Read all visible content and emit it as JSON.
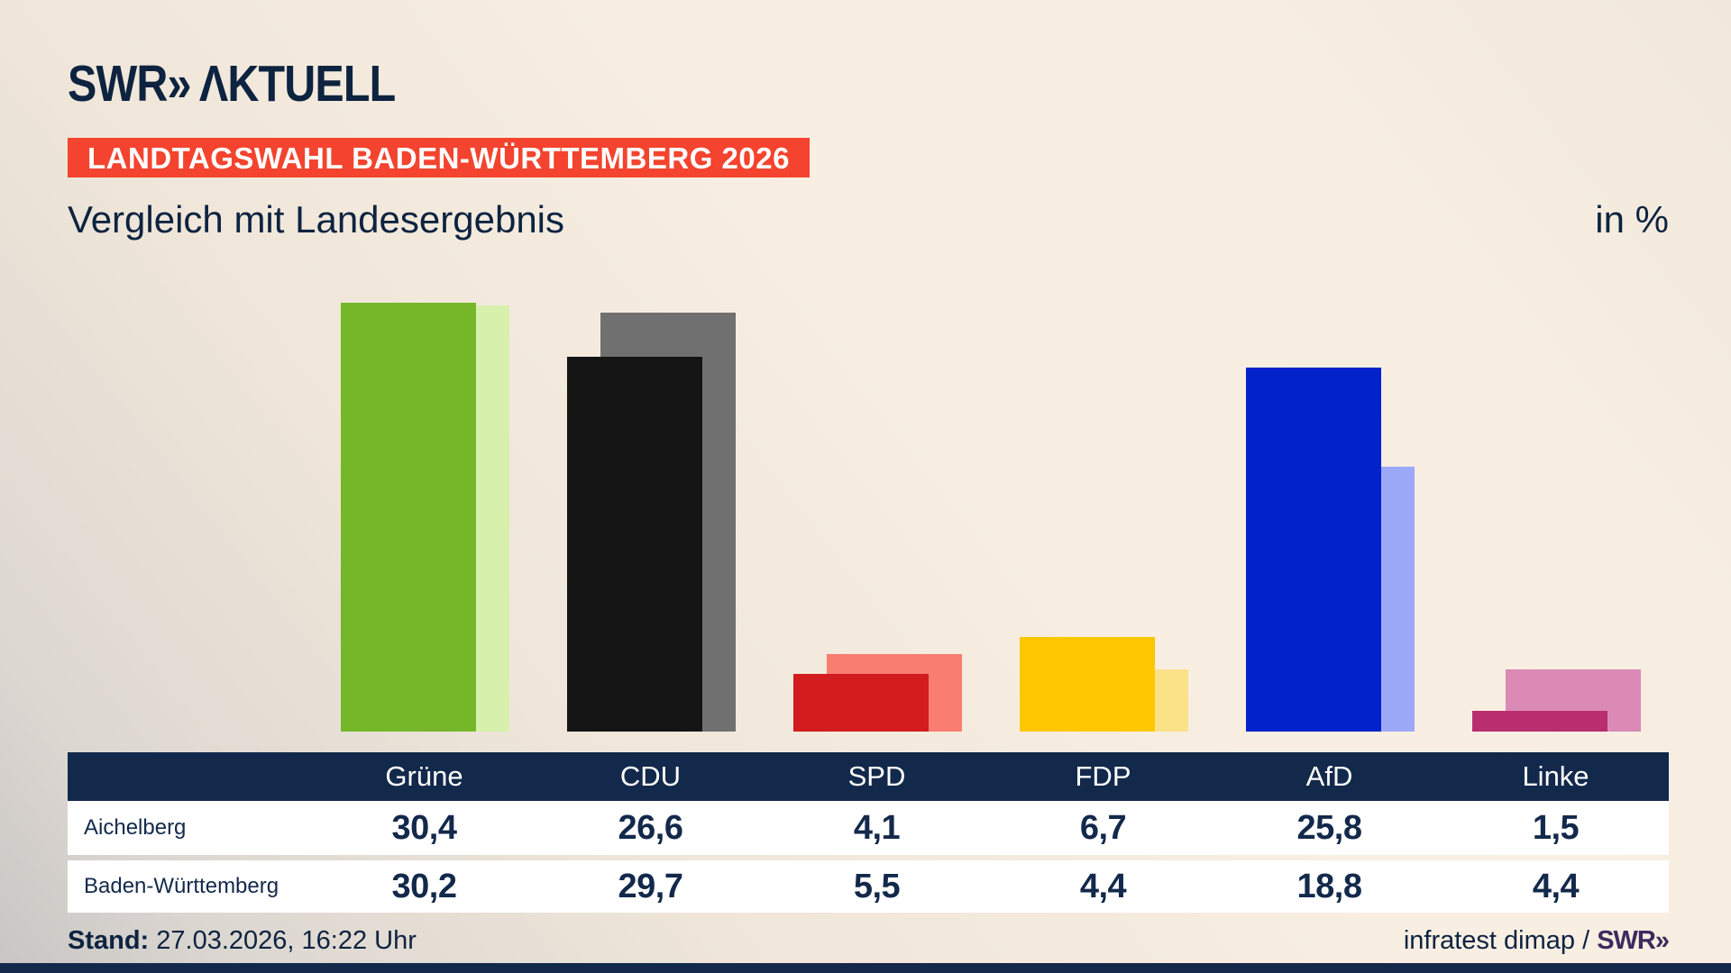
{
  "brand": {
    "logo_swr": "SWR",
    "logo_chevron": "»",
    "logo_suffix": "ΛKTUELL"
  },
  "badge": {
    "label": "LANDTAGSWAHL BADEN-WÜRTTEMBERG 2026",
    "bg": "#f4432e",
    "fg": "#ffffff"
  },
  "title": "Vergleich mit Landesergebnis",
  "unit": "in %",
  "chart_data": {
    "type": "bar",
    "categories": [
      "Grüne",
      "CDU",
      "SPD",
      "FDP",
      "AfD",
      "Linke"
    ],
    "series": [
      {
        "name": "Aichelberg",
        "values": [
          30.4,
          26.6,
          4.1,
          6.7,
          25.8,
          1.5
        ],
        "colors": [
          "#76b72a",
          "#141414",
          "#d21c1e",
          "#fdc700",
          "#0222cc",
          "#b82e6e"
        ]
      },
      {
        "name": "Baden-Württemberg",
        "values": [
          30.2,
          29.7,
          5.5,
          4.4,
          18.8,
          4.4
        ],
        "colors": [
          "#d7f0ac",
          "#717070",
          "#f97d70",
          "#fbe289",
          "#9ca9f9",
          "#da8ab5"
        ]
      }
    ],
    "ylim": [
      0,
      32
    ],
    "grid": false,
    "legend_position": "table-below",
    "value_format": "decimal-comma",
    "title": "Vergleich mit Landesergebnis",
    "ylabel": "in %"
  },
  "table": {
    "rows": [
      {
        "label": "Aichelberg",
        "values": [
          "30,4",
          "26,6",
          "4,1",
          "6,7",
          "25,8",
          "1,5"
        ]
      },
      {
        "label": "Baden-Württemberg",
        "values": [
          "30,2",
          "29,7",
          "5,5",
          "4,4",
          "18,8",
          "4,4"
        ]
      }
    ]
  },
  "footer": {
    "stand_label": "Stand:",
    "stand_text": " 27.03.2026, 16:22 Uhr",
    "source_text": "infratest dimap / ",
    "source_brand": "SWR»"
  }
}
